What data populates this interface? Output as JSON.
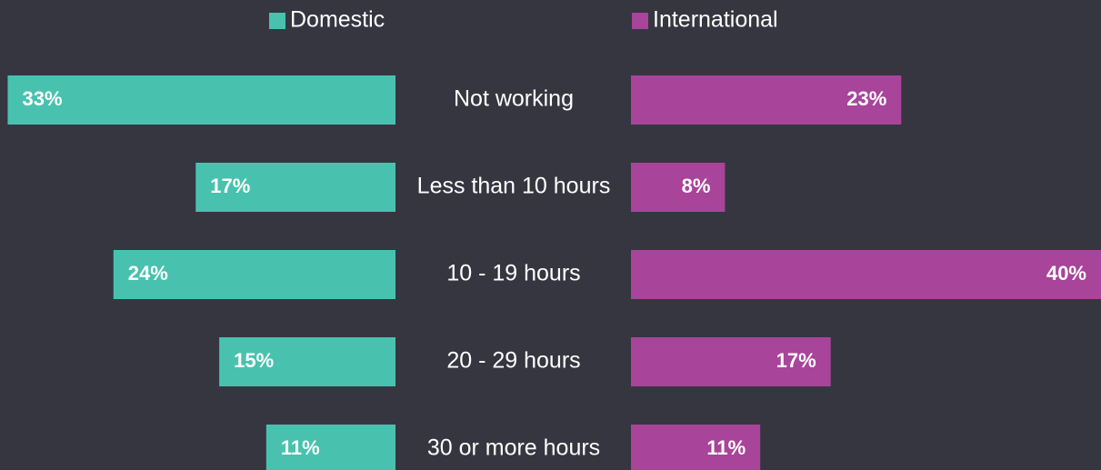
{
  "chart_data": {
    "type": "butterfly_bar",
    "categories": [
      "Not working",
      "Less than 10 hours",
      "10 - 19 hours",
      "20 - 29 hours",
      "30 or more hours"
    ],
    "series": [
      {
        "name": "Domestic",
        "color": "#48c2ae",
        "values": [
          33,
          17,
          24,
          15,
          11
        ],
        "value_labels": [
          "33%",
          "17%",
          "24%",
          "15%",
          "11%"
        ]
      },
      {
        "name": "International",
        "color": "#a8449a",
        "values": [
          23,
          8,
          40,
          17,
          11
        ],
        "value_labels": [
          "23%",
          "8%",
          "40%",
          "17%",
          "11%"
        ]
      }
    ]
  }
}
